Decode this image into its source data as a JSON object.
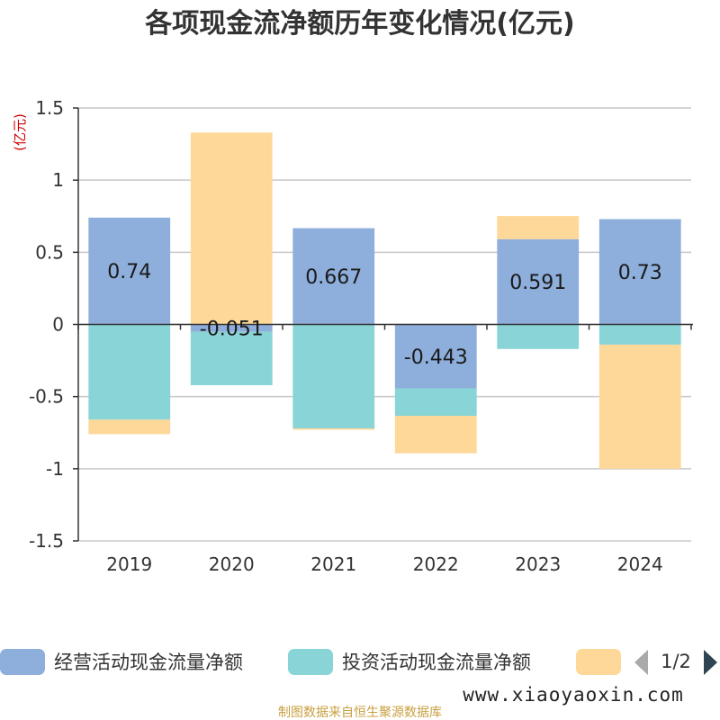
{
  "chart_data": {
    "type": "bar",
    "stacked": true,
    "title": "各项现金流净额历年变化情况(亿元)",
    "ylabel": "(亿元)",
    "categories": [
      "2019",
      "2020",
      "2021",
      "2022",
      "2023",
      "2024"
    ],
    "ylim": [
      -1.5,
      1.5
    ],
    "yticks": [
      1.5,
      1,
      0.5,
      0,
      -0.5,
      -1,
      -1.5
    ],
    "ytick_labels": [
      "1.5",
      "1",
      "0.5",
      "0",
      "-0.5",
      "-1",
      "-1.5"
    ],
    "grid": true,
    "series": [
      {
        "name": "经营活动现金流量净额",
        "values": [
          0.74,
          -0.051,
          0.667,
          -0.443,
          0.591,
          0.73
        ],
        "labels": [
          "0.74",
          "-0.051",
          "0.667",
          "-0.443",
          "0.591",
          "0.73"
        ],
        "color": "#8eaedb"
      },
      {
        "name": "投资活动现金流量净额",
        "values": [
          -0.66,
          -0.37,
          -0.72,
          -0.19,
          -0.17,
          -0.14
        ],
        "color": "#88d4d6"
      },
      {
        "name": "",
        "values": [
          -0.1,
          1.33,
          -0.01,
          -0.26,
          0.16,
          -0.86
        ],
        "color": "#fdd899"
      }
    ]
  },
  "legend": {
    "items": [
      {
        "label": "经营活动现金流量净额",
        "color": "#8eaedb"
      },
      {
        "label": "投资活动现金流量净额",
        "color": "#88d4d6"
      },
      {
        "label": "",
        "color": "#fdd899"
      }
    ],
    "page": "1/2",
    "prev_icon": "triangle-left-icon",
    "next_icon": "triangle-right-icon"
  },
  "watermark": "www.xiaoyaoxin.com",
  "source": "制图数据来自恒生聚源数据库"
}
